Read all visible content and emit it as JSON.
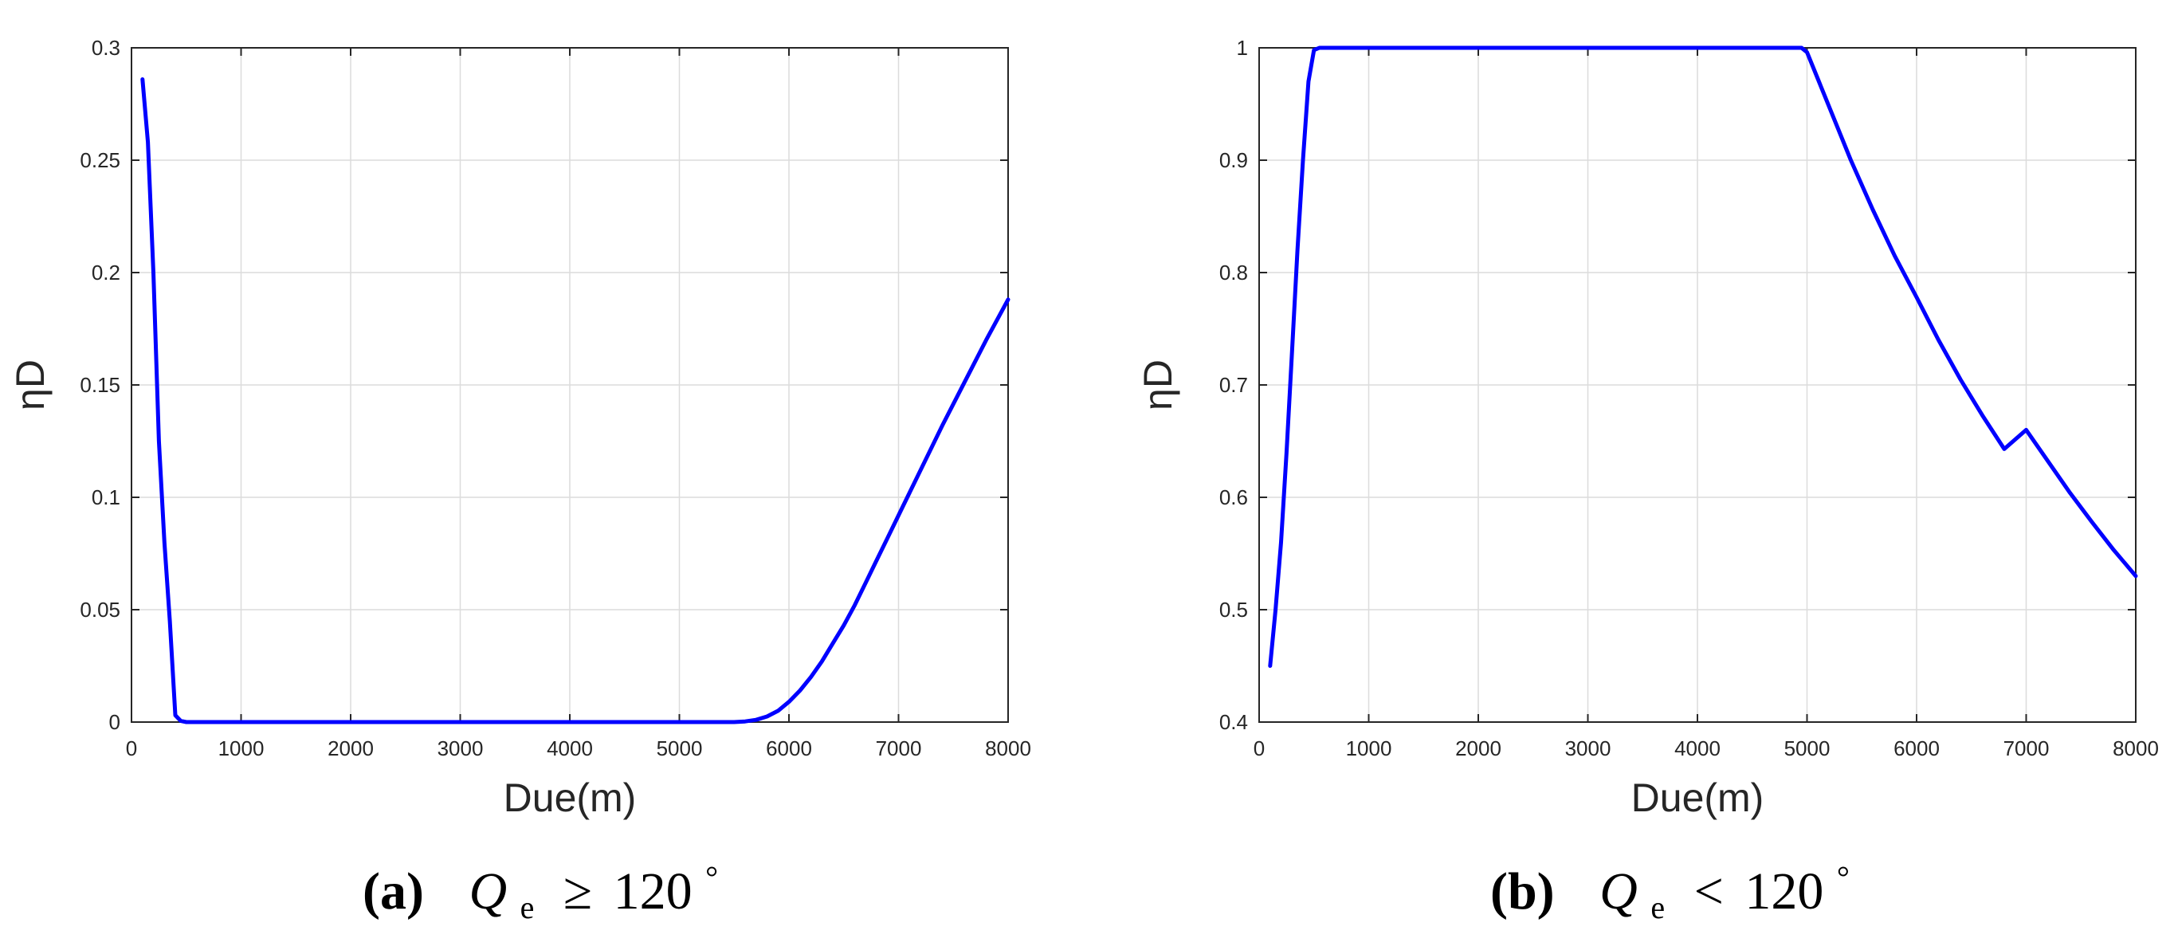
{
  "colors": {
    "line": "#0000ff",
    "axis": "#262626",
    "grid": "#dcdcdc",
    "background": "#ffffff"
  },
  "chart_data": [
    {
      "type": "line",
      "xlabel": "Due(m)",
      "ylabel": "ηD",
      "xlim": [
        0,
        8000
      ],
      "ylim": [
        0,
        0.3
      ],
      "xticks": [
        0,
        1000,
        2000,
        3000,
        4000,
        5000,
        6000,
        7000,
        8000
      ],
      "yticks": [
        0,
        0.05,
        0.1,
        0.15,
        0.2,
        0.25,
        0.3
      ],
      "grid": true,
      "caption": {
        "letter": "(a)",
        "symbol": "Q",
        "subscript": "e",
        "relation": "≥",
        "value": "120",
        "unit": "°"
      },
      "series": [
        {
          "x": [
            100,
            150,
            200,
            250,
            300,
            350,
            400,
            450,
            500,
            1000,
            2000,
            3000,
            4000,
            5000,
            5500,
            5600,
            5700,
            5800,
            5900,
            6000,
            6100,
            6200,
            6300,
            6400,
            6500,
            6600,
            6700,
            6800,
            6900,
            7000,
            7200,
            7400,
            7600,
            7800,
            8000
          ],
          "y": [
            0.286,
            0.258,
            0.2,
            0.125,
            0.08,
            0.045,
            0.003,
            0.0005,
            0,
            0,
            0,
            0,
            0,
            0,
            0,
            0.0003,
            0.001,
            0.0025,
            0.005,
            0.009,
            0.014,
            0.02,
            0.027,
            0.035,
            0.043,
            0.052,
            0.062,
            0.072,
            0.082,
            0.092,
            0.112,
            0.132,
            0.151,
            0.17,
            0.188
          ]
        }
      ]
    },
    {
      "type": "line",
      "xlabel": "Due(m)",
      "ylabel": "ηD",
      "xlim": [
        0,
        8000
      ],
      "ylim": [
        0.4,
        1
      ],
      "xticks": [
        0,
        1000,
        2000,
        3000,
        4000,
        5000,
        6000,
        7000,
        8000
      ],
      "yticks": [
        0.4,
        0.5,
        0.6,
        0.7,
        0.8,
        0.9,
        1
      ],
      "grid": true,
      "caption": {
        "letter": "(b)",
        "symbol": "Q",
        "subscript": "e",
        "relation": "<",
        "value": "120",
        "unit": "°"
      },
      "series": [
        {
          "x": [
            100,
            150,
            200,
            250,
            300,
            350,
            400,
            450,
            500,
            550,
            600,
            1000,
            2000,
            3000,
            4000,
            4950,
            5000,
            5100,
            5200,
            5400,
            5600,
            5800,
            6000,
            6200,
            6400,
            6600,
            6800,
            7000,
            7200,
            7400,
            7600,
            7800,
            8000
          ],
          "y": [
            0.45,
            0.5,
            0.56,
            0.64,
            0.73,
            0.82,
            0.9,
            0.97,
            0.998,
            1,
            1,
            1,
            1,
            1,
            1,
            1,
            0.996,
            0.972,
            0.948,
            0.9,
            0.856,
            0.815,
            0.778,
            0.74,
            0.705,
            0.673,
            0.643,
            0.66,
            0.632,
            0.604,
            0.578,
            0.553,
            0.53
          ]
        }
      ]
    }
  ]
}
